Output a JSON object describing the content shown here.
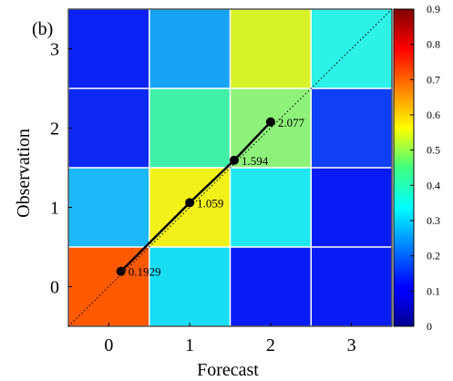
{
  "chart_data": {
    "type": "heatmap",
    "panel_label": "(b)",
    "xlabel": "Forecast",
    "ylabel": "Observation",
    "x_categories": [
      "0",
      "1",
      "2",
      "3"
    ],
    "y_categories": [
      "0",
      "1",
      "2",
      "3"
    ],
    "cells": [
      {
        "forecast": 0,
        "observation": 0,
        "value": 0.85,
        "color": "#ff5a00"
      },
      {
        "forecast": 1,
        "observation": 0,
        "value": 0.35,
        "color": "#19ddf2"
      },
      {
        "forecast": 2,
        "observation": 0,
        "value": 0.02,
        "color": "#0a1cf5"
      },
      {
        "forecast": 3,
        "observation": 0,
        "value": 0.02,
        "color": "#0a1cf5"
      },
      {
        "forecast": 0,
        "observation": 1,
        "value": 0.3,
        "color": "#1cb8f7"
      },
      {
        "forecast": 1,
        "observation": 1,
        "value": 0.65,
        "color": "#f2f21a"
      },
      {
        "forecast": 2,
        "observation": 1,
        "value": 0.35,
        "color": "#21e8f0"
      },
      {
        "forecast": 3,
        "observation": 1,
        "value": 0.02,
        "color": "#0a1cf5"
      },
      {
        "forecast": 0,
        "observation": 2,
        "value": 0.03,
        "color": "#0d28f3"
      },
      {
        "forecast": 1,
        "observation": 2,
        "value": 0.48,
        "color": "#40f0a8"
      },
      {
        "forecast": 2,
        "observation": 2,
        "value": 0.52,
        "color": "#8ef27a"
      },
      {
        "forecast": 3,
        "observation": 2,
        "value": 0.05,
        "color": "#1040f5"
      },
      {
        "forecast": 0,
        "observation": 3,
        "value": 0.03,
        "color": "#0a22f5"
      },
      {
        "forecast": 1,
        "observation": 3,
        "value": 0.25,
        "color": "#18a4f5"
      },
      {
        "forecast": 2,
        "observation": 3,
        "value": 0.62,
        "color": "#d8f22a"
      },
      {
        "forecast": 3,
        "observation": 3,
        "value": 0.36,
        "color": "#2cf2e8"
      }
    ],
    "series": [
      {
        "points": [
          {
            "x": 0.15,
            "y": 0.1929,
            "label": "0.1929"
          },
          {
            "x": 1.0,
            "y": 1.059,
            "label": "1.059"
          },
          {
            "x": 1.55,
            "y": 1.594,
            "label": "1.594"
          },
          {
            "x": 2.0,
            "y": 2.077,
            "label": "2.077"
          }
        ],
        "color": "#000000"
      }
    ],
    "diagonal": {
      "style": "dotted",
      "color": "#000000"
    },
    "xlim": [
      -0.5,
      3.5
    ],
    "ylim": [
      -0.5,
      3.5
    ],
    "colorbar": {
      "min": 0,
      "max": 0.9,
      "ticks": [
        "0",
        "0.1",
        "0.2",
        "0.3",
        "0.4",
        "0.5",
        "0.6",
        "0.7",
        "0.8",
        "0.9"
      ],
      "colormap": "jet"
    }
  }
}
